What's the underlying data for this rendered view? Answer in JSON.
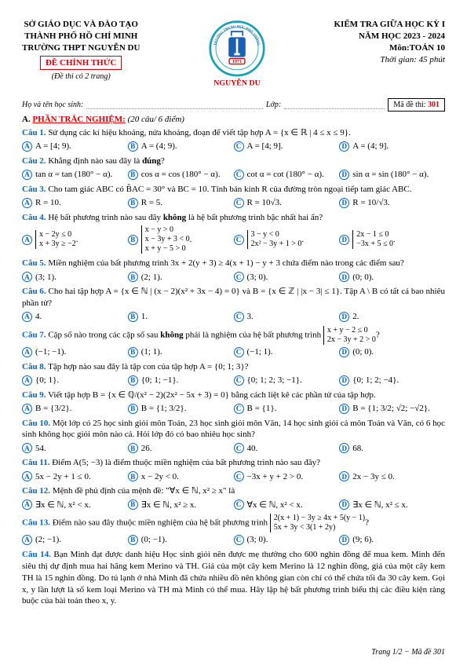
{
  "header": {
    "left": {
      "line1": "SỞ GIÁO DỤC VÀ ĐÀO TẠO",
      "line2": "THÀNH PHỐ HỒ CHÍ MINH",
      "line3": "TRƯỜNG THPT NGUYỄN DU",
      "de_chinh_thuc": "ĐỀ CHÍNH THỨC",
      "de_sub": "(Đề thi có 2 trang)"
    },
    "right": {
      "line1": "KIỂM TRA GIỮA HỌC KỲ I",
      "line2": "NĂM HỌC 2023 - 2024",
      "line3": "Môn:TOÁN 10",
      "thoi_gian": "Thời gian: 45 phút"
    },
    "logo": {
      "outer_text_top": "TRƯỜNG TRUNG HỌC PHỔ THÔNG",
      "year": "1971",
      "name": "NGUYỄN DU",
      "colors": {
        "ring": "#17a2b8",
        "text": "#1a5fb4",
        "accent": "#d00000"
      }
    }
  },
  "name_row": {
    "ho_ten": "Họ và tên học sinh:",
    "lop": "Lớp:",
    "ma_de_label": "Mã đề thi:",
    "ma_de_value": "301"
  },
  "section": {
    "label": "A.",
    "title": "PHẦN TRẮC NGHIỆM:",
    "note": "(20 câu/ 6 điểm)"
  },
  "questions": [
    {
      "n": "Câu 1.",
      "text": "Sử dụng các kí hiệu khoảng, nửa khoảng, đoạn để viết tập hợp A = {x ∈ ℝ | 4 ≤ x ≤ 9}.",
      "cols": 4,
      "opts": [
        "A = [4; 9).",
        "A = (4; 9).",
        "A = [4; 9].",
        "A = (4; 9]."
      ]
    },
    {
      "n": "Câu 2.",
      "text": "Khẳng định nào sau đây là đúng?",
      "cols": 4,
      "bold_word": "đúng",
      "opts": [
        "tan α = tan (180° − α).",
        "cos α = cos (180° − α).",
        "cot α = cot (180° − α).",
        "sin α = sin (180° − α)."
      ]
    },
    {
      "n": "Câu 3.",
      "text": "Cho tam giác ABC có B̂AC = 30° và BC = 10. Tính bán kính R của đường tròn ngoại tiếp tam giác ABC.",
      "cols": 4,
      "opts": [
        "R = 10.",
        "R = 5.",
        "R = 10√3.",
        "R = 10/√3."
      ]
    },
    {
      "n": "Câu 4.",
      "text": "Hệ bất phương trình nào sau đây không là hệ bất phương trình bậc nhất hai ẩn?",
      "cols": 4,
      "bold_word": "không",
      "opts_sys": [
        [
          "x − 2y ≤ 0",
          "x + 3y ≥ −2"
        ],
        [
          "x − y > 0",
          "x − 3y + 3 < 0",
          "x + y − 5 > 0"
        ],
        [
          "3 − y < 0",
          "2x² − 3y + 1 > 0"
        ],
        [
          "2x − 1 ≤ 0",
          "−3x + 5 ≤ 0"
        ]
      ]
    },
    {
      "n": "Câu 5.",
      "text": "Miền nghiệm của bất phương trình 3x + 2(y + 3) ≥ 4(x + 1) − y + 3 chứa điểm nào trong các điểm sau?",
      "cols": 4,
      "opts": [
        "(3; 1).",
        "(2; 1).",
        "(3; 0).",
        "(0; 0)."
      ]
    },
    {
      "n": "Câu 6.",
      "text": "Cho hai tập hợp A = {x ∈ ℕ | (x − 2)(x² + 3x − 4) = 0} và B = {x ∈ ℤ | |x − 3| ≤ 1}. Tập A \\ B có tất cả bao nhiêu phần tử?",
      "cols": 4,
      "opts": [
        "4.",
        "1.",
        "3.",
        "2."
      ]
    },
    {
      "n": "Câu 7.",
      "text_prefix": "Cặp số nào trong các cặp số sau ",
      "bold_word": "không",
      "text_suffix": " phải là nghiệm của hệ bất phương trình ",
      "inline_sys": [
        "x + y − 2 ≤ 0",
        "2x − 3y + 2 > 0"
      ],
      "qmark": "?",
      "cols": 4,
      "opts": [
        "(−1; −1).",
        "(1; 1).",
        "(−1; 1).",
        "(0; 0)."
      ]
    },
    {
      "n": "Câu 8.",
      "text": "Tập hợp nào sau đây là tập con của tập hợp A = {0; 1; 3}?",
      "cols": 4,
      "opts": [
        "{0; 1}.",
        "{0; 1; −1}.",
        "{0; 1; 2; 3; −1}.",
        "{0; 1; 2; −4}."
      ]
    },
    {
      "n": "Câu 9.",
      "text": "Viết tập hợp B = {x ∈ ℚ/(x² − 2)(2x² − 5x + 3) = 0} bằng cách liệt kê các phần tử của tập hợp.",
      "cols": 4,
      "opts": [
        "B = {3/2}.",
        "B = {1; 3/2}.",
        "B = {1}.",
        "B = {1; 3/2; √2; −√2}."
      ]
    },
    {
      "n": "Câu 10.",
      "text": "Một lớp có 25 học sinh giỏi môn Toán, 23 học sinh giỏi môn Văn, 14 học sinh giỏi cả môn Toán và Văn, có 6 học sinh không học giỏi môn nào cả. Hỏi lớp đó có bao nhiêu học sinh?",
      "cols": 4,
      "opts": [
        "54.",
        "26.",
        "40.",
        "68."
      ]
    },
    {
      "n": "Câu 11.",
      "text": "Điểm A(5; −3) là điểm thuộc miền nghiệm của bất phương trình nào sau đây?",
      "cols": 4,
      "opts": [
        "5x − 2y + 1 ≤ 0.",
        "x − 2y < 0.",
        "−3x + y + 2 > 0.",
        "2x − 3y ≤ 0."
      ]
    },
    {
      "n": "Câu 12.",
      "text": "Mệnh đề phủ định của mệnh đề: \"∀x ∈ ℕ, x² ≥ x\" là",
      "cols": 4,
      "opts": [
        "∃x ∈ ℕ, x² < x.",
        "∃x ∈ ℕ, x² ≥ x.",
        "∀x ∈ ℕ, x² < x.",
        "∃x ∈ ℕ, x² ≤ x."
      ]
    },
    {
      "n": "Câu 13.",
      "text_prefix": "Điểm nào sau đây thuộc miền nghiệm của hệ bất phương trình ",
      "inline_sys": [
        "2(x + 1) − 3y ≥ 4x + 5(y − 1)",
        "5x + 3y < 3(1 + 2y)"
      ],
      "qmark": "?",
      "cols": 4,
      "opts": [
        "(2; −1).",
        "(0; −1).",
        "(3; 0).",
        "(9; 6)."
      ]
    },
    {
      "n": "Câu 14.",
      "text": "Bạn Minh đạt được danh hiệu Học sinh giỏi nên được mẹ thưởng cho 600 nghìn đồng để mua kem. Minh đến siêu thị dự định mua hai hãng kem Merino và TH. Giá của một cây kem Merino là 12 nghìn đồng, giá của một cây kem TH là 15 nghìn đồng. Do tủ lạnh ở nhà Minh đã chứa nhiều đồ nên không gian còn chỉ có thể chứa tối đa 30 cây kem. Gọi x, y lần lượt là số kem loại Merino và TH mà Minh có thể mua. Hãy lập hệ bất phương trình biểu thị các điều kiện ràng buộc của bài toán theo x, y.",
      "no_opts": true
    }
  ],
  "footer": "Trang 1/2 − Mã đề 301",
  "colors": {
    "blue": "#0066cc",
    "red": "#d00000"
  }
}
